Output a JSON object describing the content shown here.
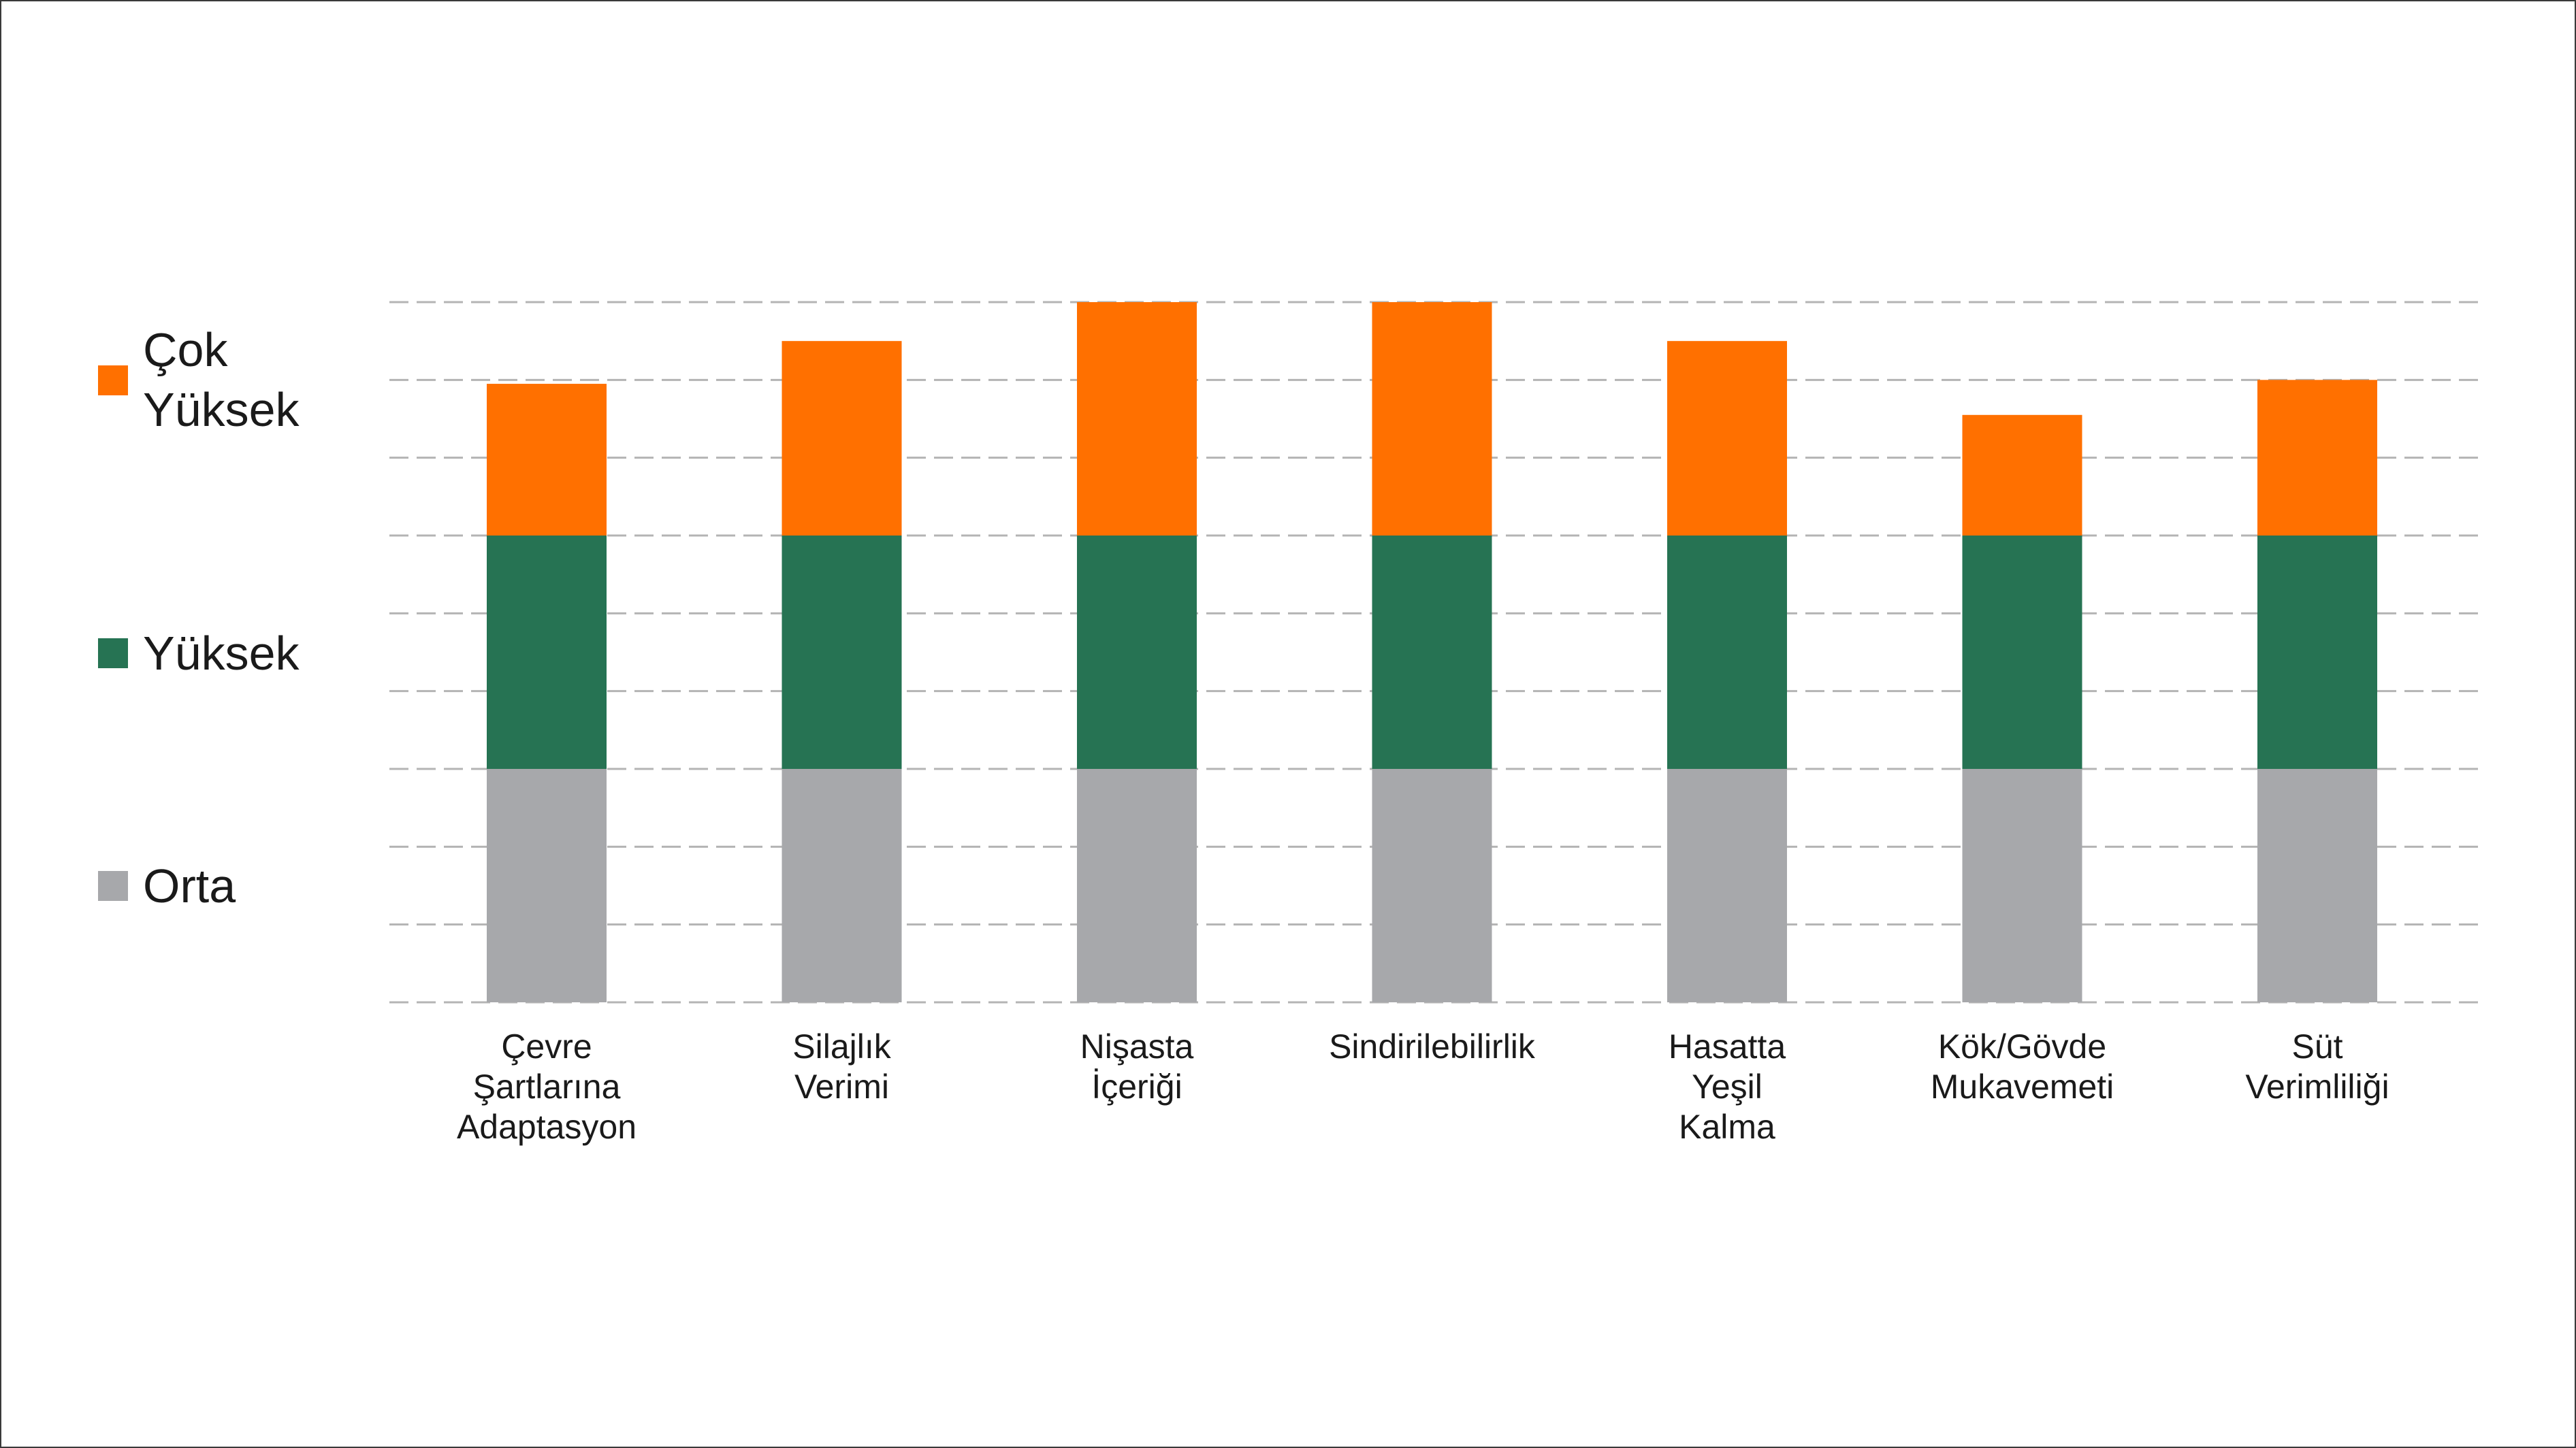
{
  "chart_data": {
    "type": "bar",
    "stacked": true,
    "title": "",
    "xlabel": "",
    "ylabel": "",
    "categories": [
      "Çevre Şartlarına Adaptasyon",
      "Silajlık Verimi",
      "Nişasta İçeriği",
      "Sindirilebilirlik",
      "Hasatta Yeşil Kalma",
      "Kök/Gövde Mukavemeti",
      "Süt Verimliliği"
    ],
    "category_label_lines": [
      [
        "Çevre",
        "Şartlarına",
        "Adaptasyon"
      ],
      [
        "Silajlık",
        "Verimi"
      ],
      [
        "Nişasta",
        "İçeriği"
      ],
      [
        "Sindirilebilirlik"
      ],
      [
        "Hasatta",
        "Yeşil",
        "Kalma"
      ],
      [
        "Kök/Gövde",
        "Mukavemeti"
      ],
      [
        "Süt",
        "Verimliliği"
      ]
    ],
    "series": [
      {
        "name": "Orta",
        "color": "#a7a8ab",
        "values": [
          3,
          3,
          3,
          3,
          3,
          3,
          3
        ]
      },
      {
        "name": "Yüksek",
        "color": "#267353",
        "values": [
          3,
          3,
          3,
          3,
          3,
          3,
          3
        ]
      },
      {
        "name": "Çok Yüksek",
        "color": "#ff7000",
        "values": [
          1.95,
          2.5,
          3,
          3,
          2.5,
          1.55,
          2
        ]
      }
    ],
    "legend_entries": [
      {
        "series": "Çok Yüksek",
        "lines": [
          "Çok",
          "Yüksek"
        ]
      },
      {
        "series": "Yüksek",
        "lines": [
          "Yüksek"
        ]
      },
      {
        "series": "Orta",
        "lines": [
          "Orta"
        ]
      }
    ],
    "legend_position": "left",
    "ylim": [
      0,
      9
    ],
    "grid": true,
    "grid_style": "dashed",
    "grid_color": "#b4b4b4"
  }
}
